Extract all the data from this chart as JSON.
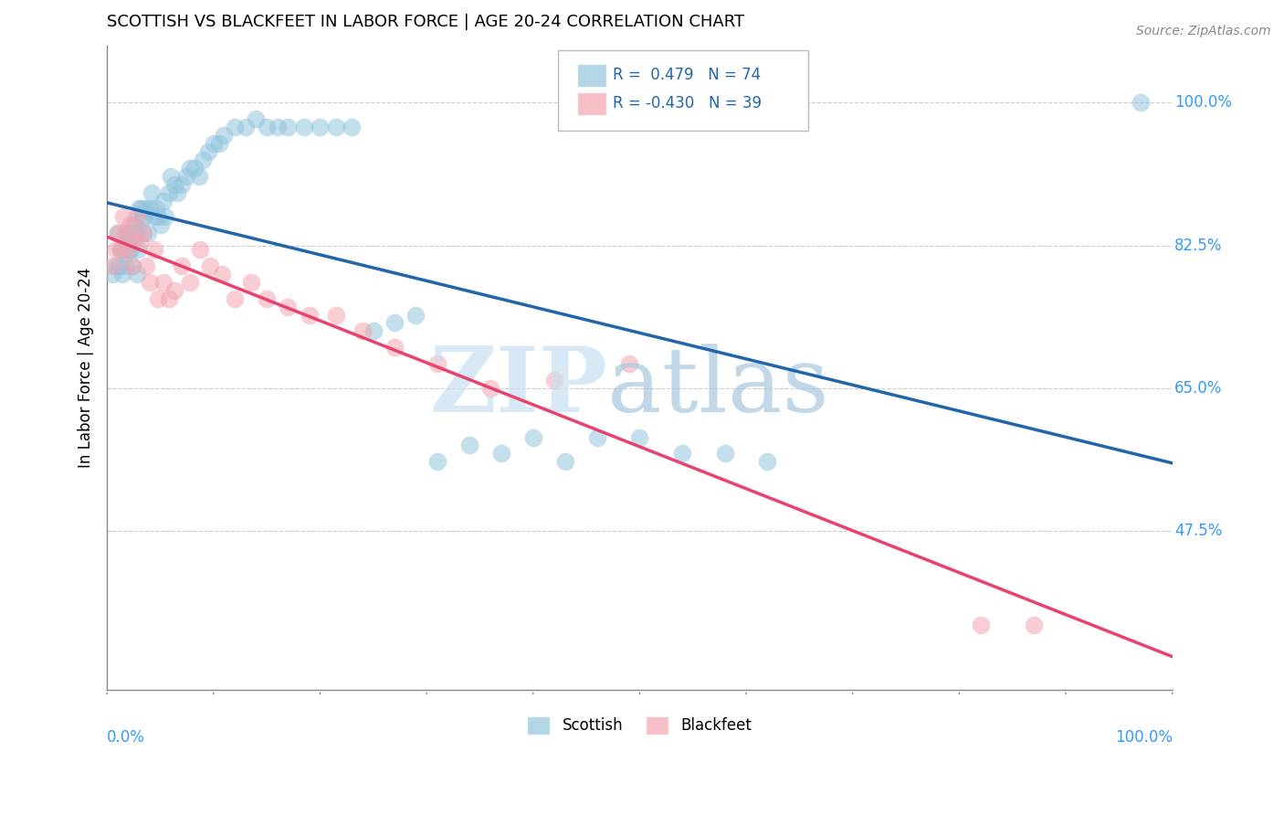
{
  "title": "SCOTTISH VS BLACKFEET IN LABOR FORCE | AGE 20-24 CORRELATION CHART",
  "source": "Source: ZipAtlas.com",
  "ylabel": "In Labor Force | Age 20-24",
  "xlim": [
    0.0,
    1.0
  ],
  "ylim": [
    0.28,
    1.07
  ],
  "yticks": [
    0.475,
    0.65,
    0.825,
    1.0
  ],
  "ytick_labels": [
    "47.5%",
    "65.0%",
    "82.5%",
    "100.0%"
  ],
  "scottish_color": "#92c5de",
  "blackfeet_color": "#f4a5b0",
  "scottish_line_color": "#2166ac",
  "blackfeet_line_color": "#e8436e",
  "R_scottish": 0.479,
  "N_scottish": 74,
  "R_blackfeet": -0.43,
  "N_blackfeet": 39,
  "scottish_x": [
    0.005,
    0.008,
    0.01,
    0.012,
    0.013,
    0.014,
    0.015,
    0.016,
    0.017,
    0.018,
    0.019,
    0.02,
    0.021,
    0.022,
    0.023,
    0.024,
    0.025,
    0.026,
    0.027,
    0.028,
    0.029,
    0.03,
    0.032,
    0.033,
    0.034,
    0.035,
    0.036,
    0.038,
    0.04,
    0.042,
    0.044,
    0.046,
    0.048,
    0.05,
    0.053,
    0.055,
    0.058,
    0.06,
    0.063,
    0.066,
    0.07,
    0.074,
    0.078,
    0.082,
    0.086,
    0.09,
    0.095,
    0.1,
    0.105,
    0.11,
    0.12,
    0.13,
    0.14,
    0.15,
    0.16,
    0.17,
    0.185,
    0.2,
    0.215,
    0.23,
    0.25,
    0.27,
    0.29,
    0.31,
    0.34,
    0.37,
    0.4,
    0.43,
    0.46,
    0.5,
    0.54,
    0.58,
    0.62,
    0.97
  ],
  "scottish_y": [
    0.79,
    0.8,
    0.84,
    0.8,
    0.82,
    0.79,
    0.82,
    0.82,
    0.8,
    0.84,
    0.83,
    0.84,
    0.82,
    0.82,
    0.83,
    0.8,
    0.85,
    0.85,
    0.84,
    0.79,
    0.82,
    0.87,
    0.87,
    0.86,
    0.84,
    0.86,
    0.87,
    0.84,
    0.87,
    0.89,
    0.86,
    0.87,
    0.86,
    0.85,
    0.88,
    0.86,
    0.89,
    0.91,
    0.9,
    0.89,
    0.9,
    0.91,
    0.92,
    0.92,
    0.91,
    0.93,
    0.94,
    0.95,
    0.95,
    0.96,
    0.97,
    0.97,
    0.98,
    0.97,
    0.97,
    0.97,
    0.97,
    0.97,
    0.97,
    0.97,
    0.72,
    0.73,
    0.74,
    0.56,
    0.58,
    0.57,
    0.59,
    0.56,
    0.59,
    0.59,
    0.57,
    0.57,
    0.56,
    1.0
  ],
  "blackfeet_x": [
    0.005,
    0.008,
    0.01,
    0.013,
    0.015,
    0.017,
    0.019,
    0.021,
    0.023,
    0.025,
    0.028,
    0.031,
    0.034,
    0.037,
    0.04,
    0.044,
    0.048,
    0.053,
    0.058,
    0.063,
    0.07,
    0.078,
    0.087,
    0.097,
    0.108,
    0.12,
    0.135,
    0.15,
    0.17,
    0.19,
    0.215,
    0.24,
    0.27,
    0.31,
    0.36,
    0.42,
    0.49,
    0.82,
    0.87
  ],
  "blackfeet_y": [
    0.8,
    0.82,
    0.84,
    0.82,
    0.86,
    0.84,
    0.82,
    0.85,
    0.8,
    0.83,
    0.86,
    0.83,
    0.84,
    0.8,
    0.78,
    0.82,
    0.76,
    0.78,
    0.76,
    0.77,
    0.8,
    0.78,
    0.82,
    0.8,
    0.79,
    0.76,
    0.78,
    0.76,
    0.75,
    0.74,
    0.74,
    0.72,
    0.7,
    0.68,
    0.65,
    0.66,
    0.68,
    0.36,
    0.36
  ]
}
